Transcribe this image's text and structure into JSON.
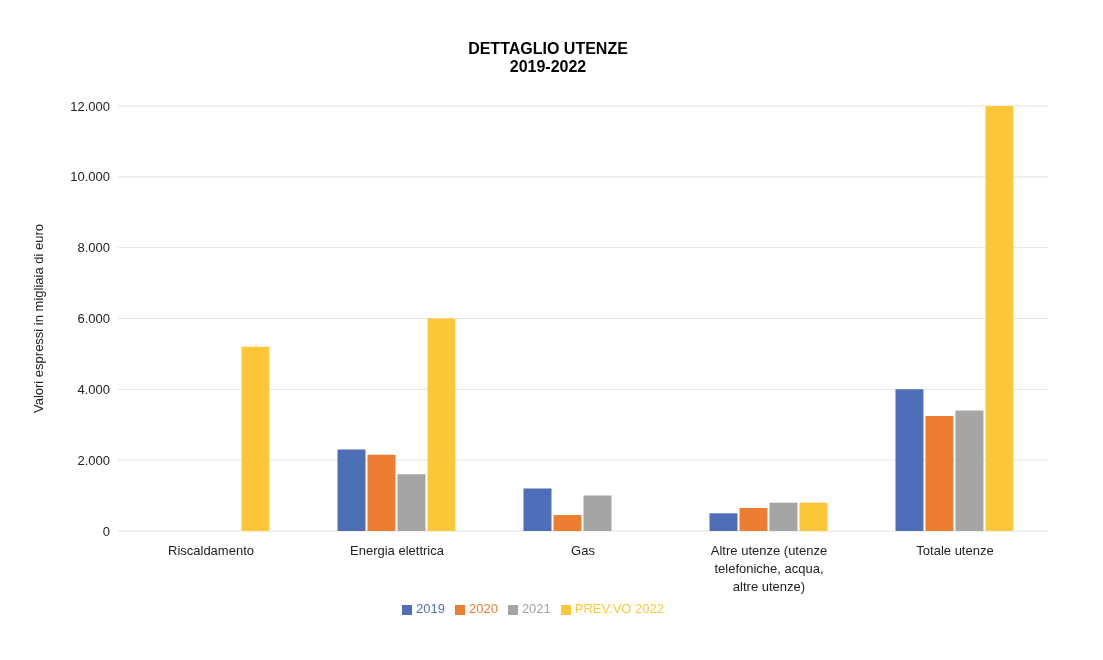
{
  "chart_data": {
    "type": "bar",
    "title": "DETTAGLIO UTENZE",
    "subtitle": "2019-2022",
    "ylabel": "Valori espressi in migliaia di euro",
    "categories": [
      "Riscaldamento",
      "Energia elettrica",
      "Gas",
      "Altre utenze (utenze telefoniche, acqua, altre utenze)",
      "Totale utenze"
    ],
    "series": [
      {
        "name": "2019",
        "color": "#4e6fb8",
        "values": [
          0,
          2300,
          1200,
          500,
          4000
        ]
      },
      {
        "name": "2020",
        "color": "#ed7d31",
        "values": [
          0,
          2150,
          450,
          650,
          3250
        ]
      },
      {
        "name": "2021",
        "color": "#a5a5a5",
        "values": [
          0,
          1600,
          1000,
          800,
          3400
        ]
      },
      {
        "name": "PREV.VO 2022",
        "color": "#fcc83a",
        "values": [
          5200,
          6000,
          0,
          800,
          12000
        ]
      }
    ],
    "ylim": [
      0,
      12000
    ],
    "yticks": [
      {
        "value": 0,
        "label": "0"
      },
      {
        "value": 2000,
        "label": "2.000"
      },
      {
        "value": 4000,
        "label": "4.000"
      },
      {
        "value": 6000,
        "label": "6.000"
      },
      {
        "value": 8000,
        "label": "8.000"
      },
      {
        "value": 10000,
        "label": "10.000"
      },
      {
        "value": 12000,
        "label": "12.000"
      }
    ],
    "grid": "y",
    "legend": "bottom"
  }
}
